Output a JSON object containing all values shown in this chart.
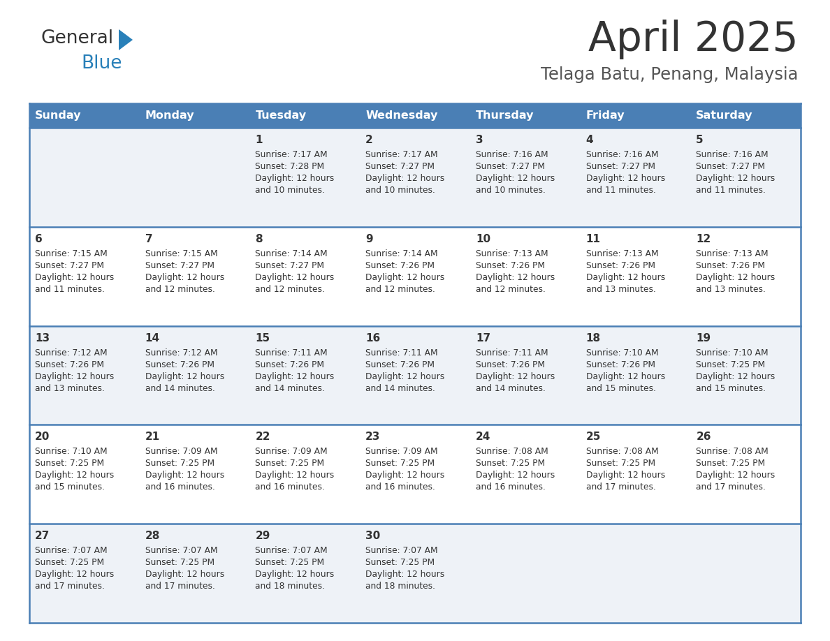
{
  "title": "April 2025",
  "subtitle": "Telaga Batu, Penang, Malaysia",
  "title_color": "#333333",
  "subtitle_color": "#555555",
  "header_bg_color": "#4A7FB5",
  "header_text_color": "#FFFFFF",
  "row_bg_even": "#EEF2F7",
  "row_bg_odd": "#FFFFFF",
  "border_color": "#4A7FB5",
  "text_color": "#333333",
  "days_of_week": [
    "Sunday",
    "Monday",
    "Tuesday",
    "Wednesday",
    "Thursday",
    "Friday",
    "Saturday"
  ],
  "calendar_data": [
    [
      {
        "day": "",
        "sunrise": "",
        "sunset": "",
        "daylight_hours": 0,
        "daylight_minutes": 0
      },
      {
        "day": "",
        "sunrise": "",
        "sunset": "",
        "daylight_hours": 0,
        "daylight_minutes": 0
      },
      {
        "day": "1",
        "sunrise": "7:17 AM",
        "sunset": "7:28 PM",
        "daylight_hours": 12,
        "daylight_minutes": 10
      },
      {
        "day": "2",
        "sunrise": "7:17 AM",
        "sunset": "7:27 PM",
        "daylight_hours": 12,
        "daylight_minutes": 10
      },
      {
        "day": "3",
        "sunrise": "7:16 AM",
        "sunset": "7:27 PM",
        "daylight_hours": 12,
        "daylight_minutes": 10
      },
      {
        "day": "4",
        "sunrise": "7:16 AM",
        "sunset": "7:27 PM",
        "daylight_hours": 12,
        "daylight_minutes": 11
      },
      {
        "day": "5",
        "sunrise": "7:16 AM",
        "sunset": "7:27 PM",
        "daylight_hours": 12,
        "daylight_minutes": 11
      }
    ],
    [
      {
        "day": "6",
        "sunrise": "7:15 AM",
        "sunset": "7:27 PM",
        "daylight_hours": 12,
        "daylight_minutes": 11
      },
      {
        "day": "7",
        "sunrise": "7:15 AM",
        "sunset": "7:27 PM",
        "daylight_hours": 12,
        "daylight_minutes": 12
      },
      {
        "day": "8",
        "sunrise": "7:14 AM",
        "sunset": "7:27 PM",
        "daylight_hours": 12,
        "daylight_minutes": 12
      },
      {
        "day": "9",
        "sunrise": "7:14 AM",
        "sunset": "7:26 PM",
        "daylight_hours": 12,
        "daylight_minutes": 12
      },
      {
        "day": "10",
        "sunrise": "7:13 AM",
        "sunset": "7:26 PM",
        "daylight_hours": 12,
        "daylight_minutes": 12
      },
      {
        "day": "11",
        "sunrise": "7:13 AM",
        "sunset": "7:26 PM",
        "daylight_hours": 12,
        "daylight_minutes": 13
      },
      {
        "day": "12",
        "sunrise": "7:13 AM",
        "sunset": "7:26 PM",
        "daylight_hours": 12,
        "daylight_minutes": 13
      }
    ],
    [
      {
        "day": "13",
        "sunrise": "7:12 AM",
        "sunset": "7:26 PM",
        "daylight_hours": 12,
        "daylight_minutes": 13
      },
      {
        "day": "14",
        "sunrise": "7:12 AM",
        "sunset": "7:26 PM",
        "daylight_hours": 12,
        "daylight_minutes": 14
      },
      {
        "day": "15",
        "sunrise": "7:11 AM",
        "sunset": "7:26 PM",
        "daylight_hours": 12,
        "daylight_minutes": 14
      },
      {
        "day": "16",
        "sunrise": "7:11 AM",
        "sunset": "7:26 PM",
        "daylight_hours": 12,
        "daylight_minutes": 14
      },
      {
        "day": "17",
        "sunrise": "7:11 AM",
        "sunset": "7:26 PM",
        "daylight_hours": 12,
        "daylight_minutes": 14
      },
      {
        "day": "18",
        "sunrise": "7:10 AM",
        "sunset": "7:26 PM",
        "daylight_hours": 12,
        "daylight_minutes": 15
      },
      {
        "day": "19",
        "sunrise": "7:10 AM",
        "sunset": "7:25 PM",
        "daylight_hours": 12,
        "daylight_minutes": 15
      }
    ],
    [
      {
        "day": "20",
        "sunrise": "7:10 AM",
        "sunset": "7:25 PM",
        "daylight_hours": 12,
        "daylight_minutes": 15
      },
      {
        "day": "21",
        "sunrise": "7:09 AM",
        "sunset": "7:25 PM",
        "daylight_hours": 12,
        "daylight_minutes": 16
      },
      {
        "day": "22",
        "sunrise": "7:09 AM",
        "sunset": "7:25 PM",
        "daylight_hours": 12,
        "daylight_minutes": 16
      },
      {
        "day": "23",
        "sunrise": "7:09 AM",
        "sunset": "7:25 PM",
        "daylight_hours": 12,
        "daylight_minutes": 16
      },
      {
        "day": "24",
        "sunrise": "7:08 AM",
        "sunset": "7:25 PM",
        "daylight_hours": 12,
        "daylight_minutes": 16
      },
      {
        "day": "25",
        "sunrise": "7:08 AM",
        "sunset": "7:25 PM",
        "daylight_hours": 12,
        "daylight_minutes": 17
      },
      {
        "day": "26",
        "sunrise": "7:08 AM",
        "sunset": "7:25 PM",
        "daylight_hours": 12,
        "daylight_minutes": 17
      }
    ],
    [
      {
        "day": "27",
        "sunrise": "7:07 AM",
        "sunset": "7:25 PM",
        "daylight_hours": 12,
        "daylight_minutes": 17
      },
      {
        "day": "28",
        "sunrise": "7:07 AM",
        "sunset": "7:25 PM",
        "daylight_hours": 12,
        "daylight_minutes": 17
      },
      {
        "day": "29",
        "sunrise": "7:07 AM",
        "sunset": "7:25 PM",
        "daylight_hours": 12,
        "daylight_minutes": 18
      },
      {
        "day": "30",
        "sunrise": "7:07 AM",
        "sunset": "7:25 PM",
        "daylight_hours": 12,
        "daylight_minutes": 18
      },
      {
        "day": "",
        "sunrise": "",
        "sunset": "",
        "daylight_hours": 0,
        "daylight_minutes": 0
      },
      {
        "day": "",
        "sunrise": "",
        "sunset": "",
        "daylight_hours": 0,
        "daylight_minutes": 0
      },
      {
        "day": "",
        "sunrise": "",
        "sunset": "",
        "daylight_hours": 0,
        "daylight_minutes": 0
      }
    ]
  ],
  "logo_general_color": "#333333",
  "logo_blue_color": "#2980B9",
  "logo_triangle_color": "#2980B9",
  "fig_width": 11.88,
  "fig_height": 9.18,
  "dpi": 100
}
